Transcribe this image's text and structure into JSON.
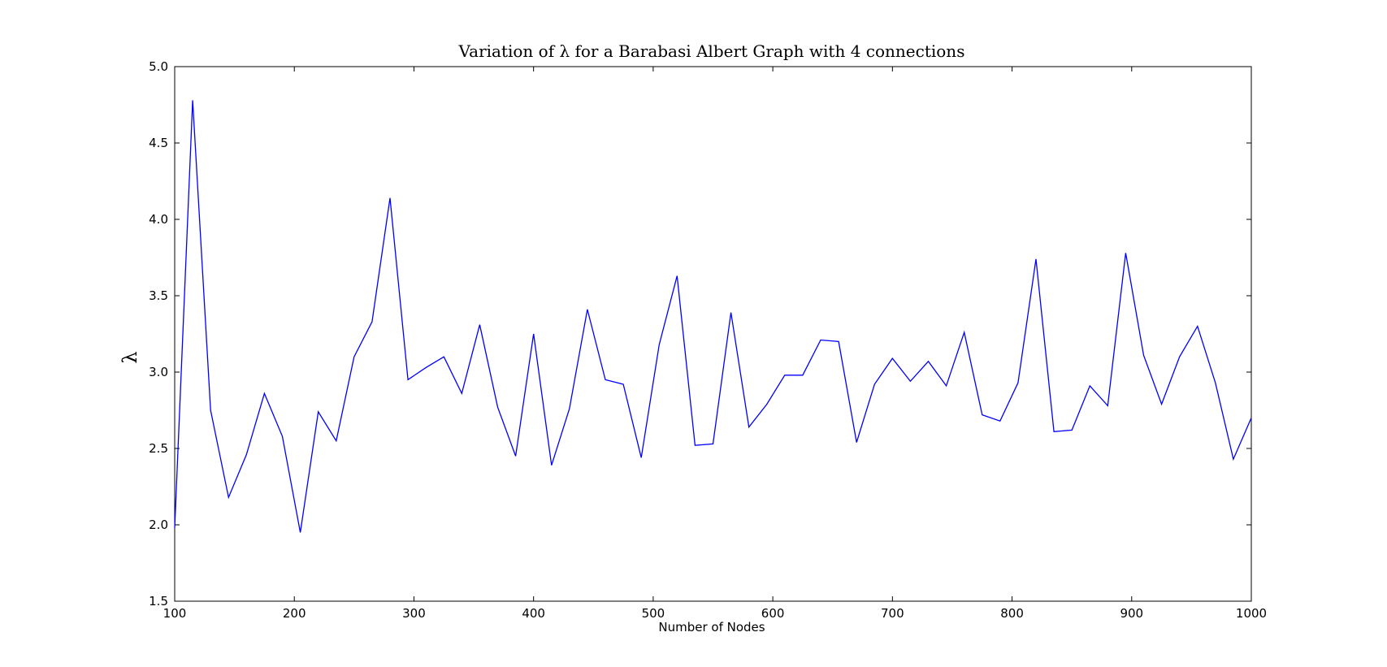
{
  "chart_data": {
    "type": "line",
    "title": "Variation of λ for a Barabasi Albert Graph with 4 connections",
    "xlabel": "Number of Nodes",
    "ylabel": "λ",
    "xlim": [
      100,
      1000
    ],
    "ylim": [
      1.5,
      5.0
    ],
    "xticks": [
      "100",
      "200",
      "300",
      "400",
      "500",
      "600",
      "700",
      "800",
      "900",
      "1000"
    ],
    "yticks": [
      "1.5",
      "2.0",
      "2.5",
      "3.0",
      "3.5",
      "4.0",
      "4.5",
      "5.0"
    ],
    "grid": false,
    "line_color": "#0000ff",
    "series": [
      {
        "x": [
          100,
          115,
          130,
          145,
          160,
          175,
          190,
          205,
          220,
          235,
          250,
          265,
          280,
          295,
          310,
          325,
          340,
          355,
          370,
          385,
          400,
          415,
          430,
          445,
          460,
          475,
          490,
          505,
          520,
          535,
          550,
          565,
          580,
          595,
          610,
          625,
          640,
          655,
          670,
          685,
          700,
          715,
          730,
          745,
          760,
          775,
          790,
          805,
          820,
          835,
          850,
          865,
          880,
          895,
          910,
          925,
          940,
          955,
          970,
          985,
          1000
        ],
        "values": [
          1.98,
          4.78,
          2.75,
          2.18,
          2.46,
          2.86,
          2.58,
          1.95,
          2.74,
          2.55,
          3.1,
          3.33,
          4.14,
          2.95,
          3.03,
          3.1,
          2.86,
          3.31,
          2.77,
          2.45,
          3.25,
          2.39,
          2.76,
          3.41,
          2.95,
          2.92,
          2.44,
          3.18,
          3.63,
          2.52,
          2.53,
          3.39,
          2.64,
          2.79,
          2.98,
          2.98,
          3.21,
          3.2,
          2.54,
          2.92,
          3.09,
          2.94,
          3.07,
          2.91,
          3.26,
          2.72,
          2.68,
          2.93,
          3.74,
          2.61,
          2.62,
          2.91,
          2.78,
          3.78,
          3.11,
          2.79,
          3.1,
          3.3,
          2.93,
          2.43,
          2.7
        ]
      }
    ]
  }
}
